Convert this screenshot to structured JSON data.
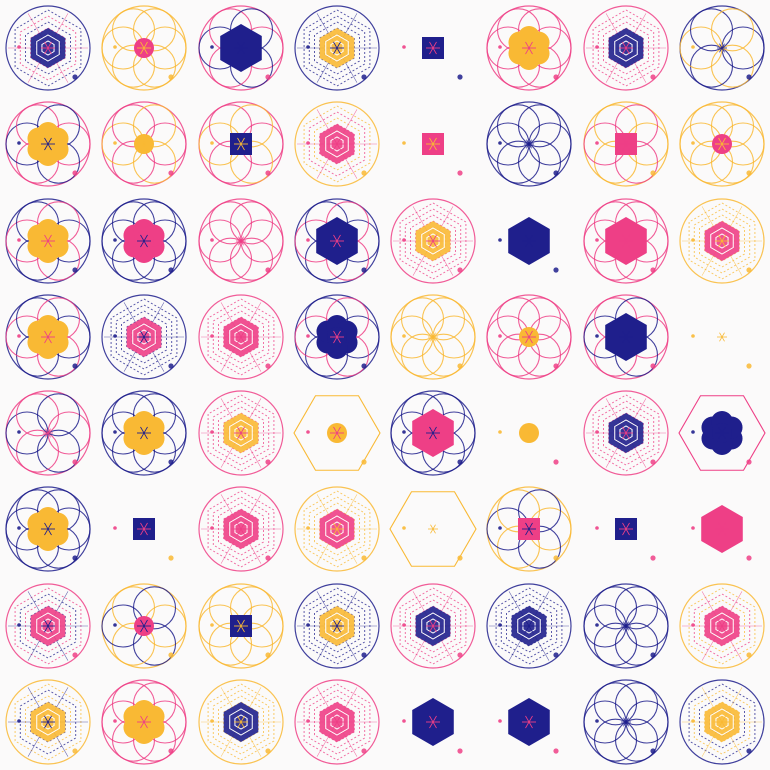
{
  "palette": {
    "navy": "#1f1f8c",
    "pink": "#ee3f86",
    "yellow": "#f9b934",
    "white": "#ffffff",
    "background": "#fbfafa"
  },
  "grid": {
    "rows": 8,
    "cols": 8
  },
  "tiles": [
    [
      "hex-stack",
      "navy",
      "circle-ring",
      "navy",
      "pink"
    ],
    [
      "small-circle",
      "pink",
      "petals",
      "yellow",
      "yellow"
    ],
    [
      "hexagon",
      "navy",
      "petals",
      "pink",
      "navy"
    ],
    [
      "hex-stack",
      "yellow",
      "circle-ring",
      "navy",
      "navy"
    ],
    [
      "square",
      "navy",
      "none",
      "navy",
      "pink"
    ],
    [
      "flower",
      "yellow",
      "petals",
      "pink",
      "pink"
    ],
    [
      "hex-stack",
      "navy",
      "circle-ring",
      "pink",
      "pink"
    ],
    [
      "none",
      "navy",
      "petals",
      "navy",
      "yellow"
    ],
    [
      "flower",
      "yellow",
      "petals",
      "pink",
      "navy"
    ],
    [
      "small-circle",
      "yellow",
      "petals",
      "pink",
      "yellow"
    ],
    [
      "square",
      "navy",
      "petals",
      "pink",
      "yellow"
    ],
    [
      "hex-stack",
      "pink",
      "circle-ring",
      "yellow",
      "pink"
    ],
    [
      "square",
      "pink",
      "none",
      "pink",
      "yellow"
    ],
    [
      "none",
      "navy",
      "petals",
      "navy",
      "navy"
    ],
    [
      "square",
      "pink",
      "petals",
      "yellow",
      "pink"
    ],
    [
      "small-circle",
      "pink",
      "petals",
      "yellow",
      "yellow"
    ],
    [
      "flower",
      "yellow",
      "petals",
      "navy",
      "pink"
    ],
    [
      "flower",
      "pink",
      "petals",
      "navy",
      "navy"
    ],
    [
      "none",
      "pink",
      "petals",
      "pink",
      "pink"
    ],
    [
      "hexagon",
      "navy",
      "petals",
      "navy",
      "pink"
    ],
    [
      "hex-stack",
      "yellow",
      "circle-ring",
      "pink",
      "pink"
    ],
    [
      "hexagon",
      "navy",
      "none",
      "navy",
      "navy"
    ],
    [
      "hexagon",
      "pink",
      "petals",
      "pink",
      "pink"
    ],
    [
      "hex-stack",
      "pink",
      "circle-ring",
      "yellow",
      "yellow"
    ],
    [
      "flower",
      "yellow",
      "petals",
      "navy",
      "pink"
    ],
    [
      "hex-stack",
      "pink",
      "circle-ring",
      "navy",
      "navy"
    ],
    [
      "hex-stack",
      "pink",
      "circle-ring",
      "pink",
      "pink"
    ],
    [
      "flower",
      "navy",
      "petals",
      "navy",
      "pink"
    ],
    [
      "none",
      "yellow",
      "petals",
      "yellow",
      "yellow"
    ],
    [
      "small-circle",
      "yellow",
      "petals",
      "pink",
      "pink"
    ],
    [
      "hexagon",
      "navy",
      "petals",
      "pink",
      "navy"
    ],
    [
      "none",
      "pink",
      "none",
      "yellow",
      "yellow"
    ],
    [
      "none",
      "pink",
      "petals",
      "pink",
      "navy"
    ],
    [
      "flower",
      "yellow",
      "petals",
      "navy",
      "navy"
    ],
    [
      "hex-stack",
      "yellow",
      "circle-ring",
      "pink",
      "pink"
    ],
    [
      "small-circle",
      "yellow",
      "hex-frame",
      "yellow",
      "pink"
    ],
    [
      "hexagon",
      "pink",
      "petals",
      "navy",
      "navy"
    ],
    [
      "small-circle",
      "yellow",
      "none",
      "pink",
      "yellow"
    ],
    [
      "hex-stack",
      "navy",
      "circle-ring",
      "pink",
      "pink"
    ],
    [
      "flower",
      "navy",
      "hex-frame",
      "pink",
      "navy"
    ],
    [
      "flower",
      "yellow",
      "petals",
      "navy",
      "navy"
    ],
    [
      "square",
      "navy",
      "none",
      "yellow",
      "pink"
    ],
    [
      "hex-stack",
      "pink",
      "circle-ring",
      "pink",
      "pink"
    ],
    [
      "hex-stack",
      "pink",
      "circle-ring",
      "yellow",
      "yellow"
    ],
    [
      "none",
      "yellow",
      "hex-frame",
      "yellow",
      "yellow"
    ],
    [
      "square",
      "pink",
      "petals",
      "yellow",
      "navy"
    ],
    [
      "square",
      "navy",
      "none",
      "pink",
      "pink"
    ],
    [
      "hexagon",
      "pink",
      "none",
      "pink",
      "pink"
    ],
    [
      "hex-stack",
      "pink",
      "circle-ring",
      "pink",
      "navy"
    ],
    [
      "small-circle",
      "pink",
      "petals",
      "yellow",
      "navy"
    ],
    [
      "square",
      "navy",
      "petals",
      "yellow",
      "yellow"
    ],
    [
      "hex-stack",
      "yellow",
      "circle-ring",
      "navy",
      "navy"
    ],
    [
      "hex-stack",
      "navy",
      "circle-ring",
      "pink",
      "pink"
    ],
    [
      "hex-stack",
      "navy",
      "circle-ring",
      "navy",
      "navy"
    ],
    [
      "none",
      "navy",
      "petals",
      "navy",
      "navy"
    ],
    [
      "hex-stack",
      "pink",
      "circle-ring",
      "yellow",
      "pink"
    ],
    [
      "hex-stack",
      "yellow",
      "circle-ring",
      "yellow",
      "navy"
    ],
    [
      "flower",
      "yellow",
      "petals",
      "pink",
      "pink"
    ],
    [
      "hex-stack",
      "navy",
      "circle-ring",
      "yellow",
      "yellow"
    ],
    [
      "hex-stack",
      "pink",
      "circle-ring",
      "pink",
      "pink"
    ],
    [
      "hexagon",
      "navy",
      "none",
      "pink",
      "pink"
    ],
    [
      "hexagon",
      "navy",
      "none",
      "pink",
      "pink"
    ],
    [
      "none",
      "navy",
      "petals",
      "navy",
      "navy"
    ],
    [
      "hex-stack",
      "yellow",
      "circle-ring",
      "navy",
      "yellow"
    ]
  ]
}
